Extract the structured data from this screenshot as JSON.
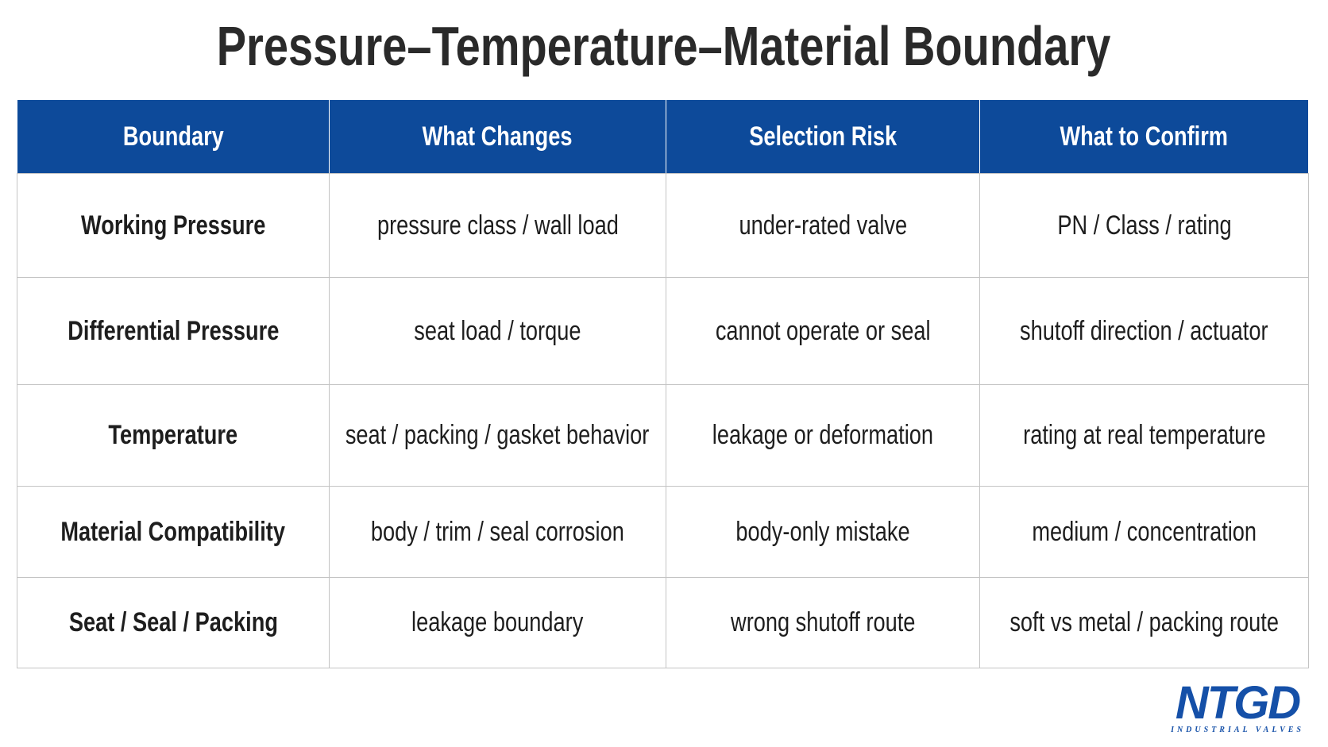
{
  "title": "Pressure–Temperature–Material Boundary",
  "table": {
    "headers": [
      "Boundary",
      "What Changes",
      "Selection Risk",
      "What to Confirm"
    ],
    "rows": [
      [
        "Working Pressure",
        "pressure class / wall load",
        "under-rated valve",
        "PN / Class / rating"
      ],
      [
        "Differential Pressure",
        "seat load / torque",
        "cannot operate or seal",
        "shutoff direction / actuator"
      ],
      [
        "Temperature",
        "seat / packing / gasket behavior",
        "leakage or deformation",
        "rating at real temperature"
      ],
      [
        "Material Compatibility",
        "body / trim / seal corrosion",
        "body-only mistake",
        "medium / concentration"
      ],
      [
        "Seat / Seal / Packing",
        "leakage boundary",
        "wrong shutoff route",
        "soft vs metal / packing route"
      ]
    ]
  },
  "logo": {
    "name": "NTGD",
    "tagline": "INDUSTRIAL VALVES"
  }
}
